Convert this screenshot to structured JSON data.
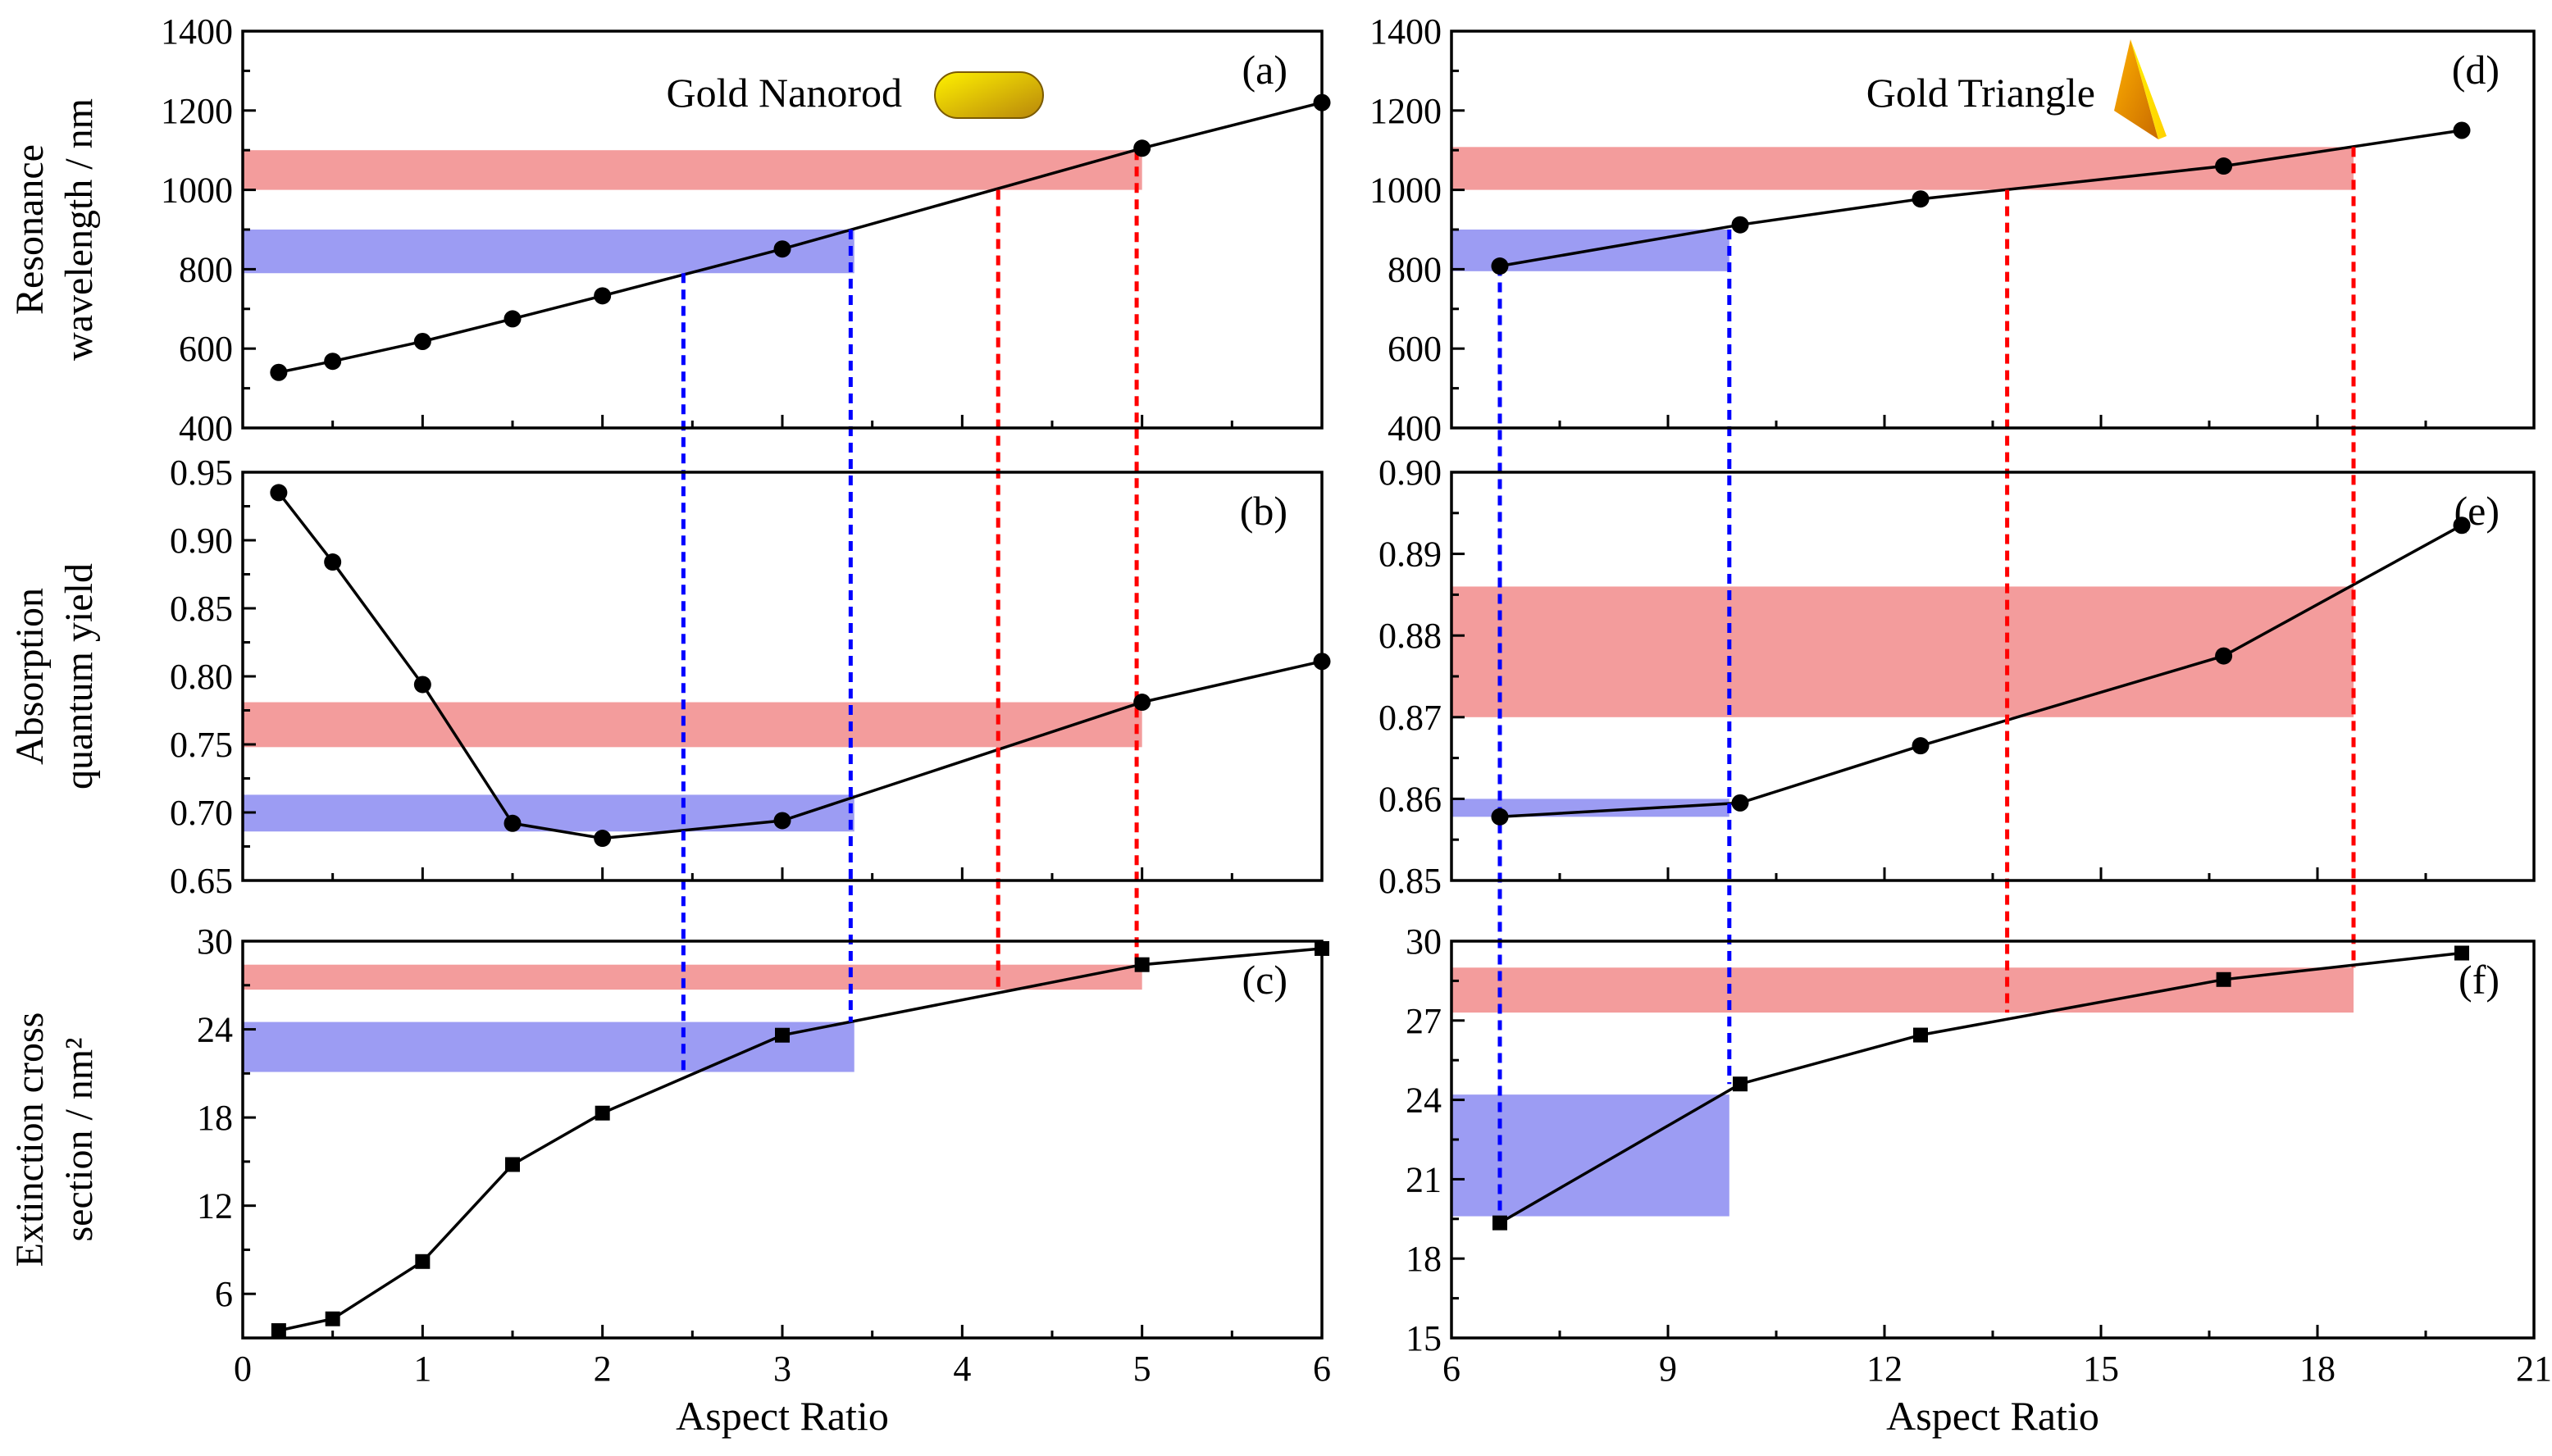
{
  "colors": {
    "line": "#000000",
    "red_band": "#f08080",
    "blue_band": "#8080f0",
    "red_dash": "#ff0000",
    "blue_dash": "#0000ff",
    "gold_light": "#fff200",
    "gold_dark": "#b8860b"
  },
  "chart_data": [
    {
      "id": "a",
      "label": "(a)",
      "type": "line",
      "marker": "circle",
      "column": "left",
      "row": 0,
      "ylabel": [
        "Resonance",
        "wavelength / nm"
      ],
      "xlim": [
        0,
        6
      ],
      "ylim": [
        400,
        1400
      ],
      "xticks": [
        0,
        1,
        2,
        3,
        4,
        5,
        6
      ],
      "yticks": [
        400,
        600,
        800,
        1000,
        1200,
        1400
      ],
      "ytick_labels": [
        "400",
        "600",
        "800",
        "1000",
        "1200",
        "1400"
      ],
      "annotation": "Gold Nanorod",
      "icon": "nanorod-icon",
      "x": [
        0.2,
        0.5,
        1,
        1.5,
        2,
        3,
        5,
        6
      ],
      "y": [
        540,
        568,
        618,
        675,
        733,
        851,
        1105,
        1220
      ],
      "bands": [
        {
          "color": "red",
          "x_from": 0,
          "x_to": 5.0,
          "y_from": 1000,
          "y_to": 1100
        },
        {
          "color": "blue",
          "x_from": 0,
          "x_to": 3.4,
          "y_from": 790,
          "y_to": 900
        }
      ]
    },
    {
      "id": "b",
      "label": "(b)",
      "type": "line",
      "marker": "circle",
      "column": "left",
      "row": 1,
      "ylabel": [
        "Absorption",
        "quantum yield"
      ],
      "xlim": [
        0,
        6
      ],
      "ylim": [
        0.65,
        0.95
      ],
      "xticks": [
        0,
        1,
        2,
        3,
        4,
        5,
        6
      ],
      "yticks": [
        0.65,
        0.7,
        0.75,
        0.8,
        0.85,
        0.9,
        0.95
      ],
      "ytick_labels": [
        "0.65",
        "0.70",
        "0.75",
        "0.80",
        "0.85",
        "0.90",
        "0.95"
      ],
      "x": [
        0.2,
        0.5,
        1,
        1.5,
        2,
        3,
        5,
        6
      ],
      "y": [
        0.935,
        0.884,
        0.794,
        0.692,
        0.681,
        0.694,
        0.781,
        0.811
      ],
      "bands": [
        {
          "color": "red",
          "x_from": 0,
          "x_to": 5.0,
          "y_from": 0.748,
          "y_to": 0.781
        },
        {
          "color": "blue",
          "x_from": 0,
          "x_to": 3.4,
          "y_from": 0.686,
          "y_to": 0.713
        }
      ]
    },
    {
      "id": "c",
      "label": "(c)",
      "type": "line",
      "marker": "square",
      "column": "left",
      "row": 2,
      "ylabel": [
        "Extinction cross",
        "section / nm²"
      ],
      "xlabel": "Aspect Ratio",
      "xlim": [
        0,
        6
      ],
      "ylim": [
        3,
        30
      ],
      "xticks": [
        0,
        1,
        2,
        3,
        4,
        5,
        6
      ],
      "xtick_labels": [
        "0",
        "1",
        "2",
        "3",
        "4",
        "5",
        "6"
      ],
      "yticks": [
        6,
        12,
        18,
        24,
        30
      ],
      "ytick_labels": [
        "6",
        "12",
        "18",
        "24",
        "30"
      ],
      "x": [
        0.2,
        0.5,
        1,
        1.5,
        2,
        3,
        5,
        6
      ],
      "y": [
        3.5,
        4.3,
        8.2,
        14.8,
        18.3,
        23.6,
        28.4,
        29.5
      ],
      "bands": [
        {
          "color": "red",
          "x_from": 0,
          "x_to": 5.0,
          "y_from": 26.7,
          "y_to": 28.4
        },
        {
          "color": "blue",
          "x_from": 0,
          "x_to": 3.4,
          "y_from": 21.1,
          "y_to": 24.5
        }
      ]
    },
    {
      "id": "d",
      "label": "(d)",
      "type": "line",
      "marker": "circle",
      "column": "right",
      "row": 0,
      "xlim": [
        6,
        21
      ],
      "ylim": [
        400,
        1400
      ],
      "xticks": [
        6,
        9,
        12,
        15,
        18,
        21
      ],
      "yticks": [
        400,
        600,
        800,
        1000,
        1200,
        1400
      ],
      "ytick_labels": [
        "400",
        "600",
        "800",
        "1000",
        "1200",
        "1400"
      ],
      "annotation": "Gold Triangle",
      "icon": "triangle-prism-icon",
      "x": [
        6.67,
        10,
        12.5,
        16.7,
        20
      ],
      "y": [
        808,
        912,
        977,
        1060,
        1150
      ],
      "bands": [
        {
          "color": "red",
          "x_from": 6,
          "x_to": 18.5,
          "y_from": 1000,
          "y_to": 1108
        },
        {
          "color": "blue",
          "x_from": 6,
          "x_to": 9.85,
          "y_from": 795,
          "y_to": 900
        }
      ]
    },
    {
      "id": "e",
      "label": "(e)",
      "type": "line",
      "marker": "circle",
      "column": "right",
      "row": 1,
      "xlim": [
        6,
        21
      ],
      "ylim": [
        0.85,
        0.9
      ],
      "xticks": [
        6,
        9,
        12,
        15,
        18,
        21
      ],
      "yticks": [
        0.85,
        0.86,
        0.87,
        0.88,
        0.89,
        0.9
      ],
      "ytick_labels": [
        "0.85",
        "0.86",
        "0.87",
        "0.88",
        "0.89",
        "0.90"
      ],
      "x": [
        6.67,
        10,
        12.5,
        16.7,
        20
      ],
      "y": [
        0.8578,
        0.8595,
        0.8665,
        0.8775,
        0.8935
      ],
      "bands": [
        {
          "color": "red",
          "x_from": 6,
          "x_to": 18.5,
          "y_from": 0.87,
          "y_to": 0.886
        },
        {
          "color": "blue",
          "x_from": 6,
          "x_to": 9.85,
          "y_from": 0.8578,
          "y_to": 0.86
        }
      ]
    },
    {
      "id": "f",
      "label": "(f)",
      "type": "line",
      "marker": "square",
      "column": "right",
      "row": 2,
      "xlabel": "Aspect Ratio",
      "xlim": [
        6,
        21
      ],
      "ylim": [
        15,
        30
      ],
      "xticks": [
        6,
        9,
        12,
        15,
        18,
        21
      ],
      "xtick_labels": [
        "6",
        "9",
        "12",
        "15",
        "18",
        "21"
      ],
      "yticks": [
        15,
        18,
        21,
        24,
        27,
        30
      ],
      "ytick_labels": [
        "15",
        "18",
        "21",
        "24",
        "27",
        "30"
      ],
      "x": [
        6.67,
        10,
        12.5,
        16.7,
        20
      ],
      "y": [
        19.35,
        24.6,
        26.45,
        28.55,
        29.55
      ],
      "bands": [
        {
          "color": "red",
          "x_from": 6,
          "x_to": 18.5,
          "y_from": 27.3,
          "y_to": 29.0
        },
        {
          "color": "blue",
          "x_from": 6,
          "x_to": 9.85,
          "y_from": 19.6,
          "y_to": 24.2
        }
      ]
    }
  ],
  "guide_lines": [
    {
      "column": "left",
      "color": "blue",
      "x": 2.45,
      "from_panel": "a",
      "from_y": 790,
      "to_panel": "c",
      "to_y": 21.1
    },
    {
      "column": "left",
      "color": "blue",
      "x": 3.38,
      "from_panel": "a",
      "from_y": 900,
      "to_panel": "c",
      "to_y": 24.5
    },
    {
      "column": "left",
      "color": "red",
      "x": 4.2,
      "from_panel": "a",
      "from_y": 1000,
      "to_panel": "c",
      "to_y": 26.7
    },
    {
      "column": "left",
      "color": "red",
      "x": 4.97,
      "from_panel": "a",
      "from_y": 1100,
      "to_panel": "c",
      "to_y": 28.4
    },
    {
      "column": "right",
      "color": "blue",
      "x": 6.67,
      "from_panel": "d",
      "from_y": 808,
      "to_panel": "f",
      "to_y": 19.35
    },
    {
      "column": "right",
      "color": "blue",
      "x": 9.85,
      "from_panel": "d",
      "from_y": 900,
      "to_panel": "f",
      "to_y": 24.6
    },
    {
      "column": "right",
      "color": "red",
      "x": 13.7,
      "from_panel": "d",
      "from_y": 1000,
      "to_panel": "f",
      "to_y": 27.3
    },
    {
      "column": "right",
      "color": "red",
      "x": 18.5,
      "from_panel": "d",
      "from_y": 1108,
      "to_panel": "f",
      "to_y": 29.0
    }
  ]
}
